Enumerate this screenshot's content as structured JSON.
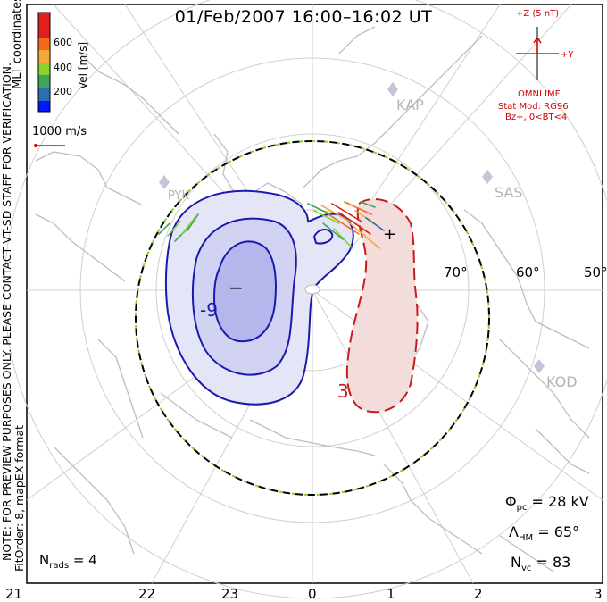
{
  "title": "01/Feb/2007  16:00–16:02 UT",
  "colorbar": {
    "axis_label": "Vel [m/s]",
    "ticks": [
      "200",
      "400",
      "600"
    ],
    "colors": [
      "#0018ff",
      "#2a6fb0",
      "#3fa55a",
      "#8ad22e",
      "#f3a93b",
      "#f26b1b",
      "#e0201a"
    ]
  },
  "coord_label": "MLT coordinates",
  "ref_vector": {
    "label": "1000 m/s",
    "color": "#d00000"
  },
  "imf": {
    "z_label": "+Z (5 nT)",
    "y_label": "+Y",
    "source": "OMNI IMF",
    "model": "Stat Mod: RG96",
    "condition": "Bz+, 0<BT<4"
  },
  "stations": [
    "KAP",
    "SAS",
    "KOD",
    "PYK"
  ],
  "latitude_labels": [
    "70°",
    "60°",
    "50°"
  ],
  "mlt_labels": [
    "21",
    "22",
    "23",
    "0",
    "1",
    "2",
    "3"
  ],
  "contours": {
    "negative_label": "-9",
    "positive_label": "3",
    "min_marker": "−",
    "max_marker": "+"
  },
  "stats": {
    "phi_symbol": "Φ",
    "phi_sub": "pc",
    "phi_value": "= 28 kV",
    "lambda_symbol": "Λ",
    "lambda_sub": "HM",
    "lambda_value": "= 65°",
    "nvc_symbol": "N",
    "nvc_sub": "vc",
    "nvc_value": "= 83",
    "nrads_symbol": "N",
    "nrads_sub": "rads",
    "nrads_value": "= 4"
  },
  "notes": {
    "preview": "NOTE: FOR PREVIEW PURPOSES ONLY. PLEASE CONTACT VT-SD STAFF FOR VERIFICATION.",
    "fit": "FitOrder: 8, mapEX format"
  }
}
